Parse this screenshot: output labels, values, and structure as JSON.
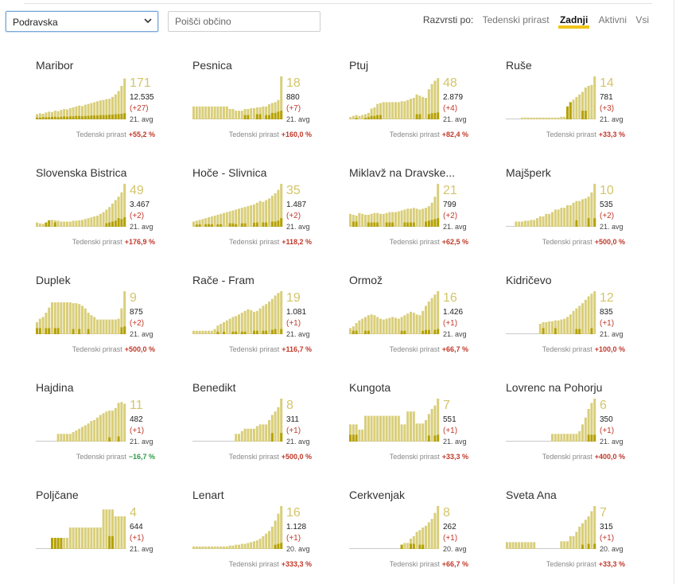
{
  "filters": {
    "region_value": "Podravska",
    "search_placeholder": "Poišči občino"
  },
  "sort": {
    "label": "Razvrsti po:",
    "options": [
      {
        "label": "Tedenski prirast",
        "active": false
      },
      {
        "label": "Zadnji",
        "active": true
      },
      {
        "label": "Aktivni",
        "active": false
      },
      {
        "label": "Vsi",
        "active": false
      }
    ]
  },
  "colors": {
    "bar_light": "#d9ce7a",
    "bar_dark": "#b4a100",
    "big_number": "#d4c56a",
    "growth_positive": "#c0392b",
    "growth_negative": "#2e9a4a"
  },
  "growth_label": "Tedenski prirast",
  "cards": [
    {
      "name": "Maribor",
      "last": "171",
      "total": "12.535",
      "delta": "(+27)",
      "date": "21. avg",
      "growth": "+55,2 %",
      "bars": [
        0.12,
        0.14,
        0.13,
        0.16,
        0.18,
        0.17,
        0.2,
        0.19,
        0.22,
        0.24,
        0.23,
        0.26,
        0.28,
        0.3,
        0.32,
        0.31,
        0.34,
        0.36,
        0.38,
        0.4,
        0.42,
        0.44,
        0.45,
        0.47,
        0.48,
        0.52,
        0.58,
        0.66,
        0.78,
        0.95
      ],
      "dark": [
        0.04,
        0.04,
        0.05,
        0.05,
        0.05,
        0.06,
        0.06,
        0.05,
        0.06,
        0.07,
        0.06,
        0.07,
        0.07,
        0.08,
        0.08,
        0.07,
        0.08,
        0.08,
        0.09,
        0.09,
        0.09,
        0.1,
        0.1,
        0.1,
        0.11,
        0.11,
        0.12,
        0.12,
        0.13,
        0.14
      ]
    },
    {
      "name": "Pesnica",
      "last": "18",
      "total": "880",
      "delta": "(+7)",
      "date": "21. avg",
      "growth": "+160,0 %",
      "bars": [
        0.3,
        0.3,
        0.3,
        0.3,
        0.3,
        0.3,
        0.3,
        0.3,
        0.3,
        0.3,
        0.3,
        0.3,
        0.24,
        0.24,
        0.2,
        0.2,
        0.2,
        0.24,
        0.24,
        0.26,
        0.26,
        0.28,
        0.28,
        0.3,
        0.3,
        0.35,
        0.38,
        0.4,
        0.45,
        1.0
      ],
      "dark": [
        0,
        0,
        0,
        0,
        0,
        0,
        0,
        0,
        0,
        0,
        0,
        0,
        0,
        0,
        0,
        0,
        0,
        0.1,
        0.1,
        0,
        0,
        0.12,
        0.12,
        0,
        0.1,
        0.1,
        0.15,
        0.15,
        0.18,
        0.2
      ]
    },
    {
      "name": "Ptuj",
      "last": "48",
      "total": "2.879",
      "delta": "(+4)",
      "date": "21. avg",
      "growth": "+82,4 %",
      "bars": [
        0.05,
        0.08,
        0.1,
        0.08,
        0.1,
        0.12,
        0.15,
        0.25,
        0.28,
        0.36,
        0.38,
        0.4,
        0.4,
        0.4,
        0.4,
        0.4,
        0.4,
        0.42,
        0.42,
        0.45,
        0.48,
        0.5,
        0.58,
        0.55,
        0.52,
        0.5,
        0.7,
        0.82,
        0.9,
        0.96
      ],
      "dark": [
        0,
        0,
        0.03,
        0,
        0,
        0.03,
        0.05,
        0.08,
        0.08,
        0.1,
        0.1,
        0,
        0,
        0,
        0,
        0,
        0,
        0,
        0,
        0,
        0,
        0,
        0.12,
        0.12,
        0,
        0,
        0.12,
        0.14,
        0.15,
        0.16
      ]
    },
    {
      "name": "Ruše",
      "last": "14",
      "total": "781",
      "delta": "(+3)",
      "date": "21. avg",
      "growth": "+33,3 %",
      "bars": [
        0,
        0,
        0,
        0,
        0,
        0.04,
        0.04,
        0.04,
        0.04,
        0.04,
        0.04,
        0.04,
        0.04,
        0.04,
        0.04,
        0.04,
        0.04,
        0.04,
        0.06,
        0.06,
        0.3,
        0.4,
        0.46,
        0.52,
        0.58,
        0.64,
        0.74,
        0.78,
        0.8,
        1.0
      ],
      "dark": [
        0,
        0,
        0,
        0,
        0,
        0,
        0,
        0,
        0,
        0,
        0,
        0,
        0,
        0,
        0,
        0,
        0,
        0,
        0,
        0,
        0.3,
        0.4,
        0,
        0,
        0,
        0.2,
        0.2,
        0,
        0,
        0
      ]
    },
    {
      "name": "Slovenska Bistrica",
      "last": "49",
      "total": "3.467",
      "delta": "(+2)",
      "date": "21. avg",
      "growth": "+176,9 %",
      "bars": [
        0.1,
        0.08,
        0.07,
        0.1,
        0.15,
        0.16,
        0.15,
        0.14,
        0.12,
        0.12,
        0.12,
        0.12,
        0.14,
        0.14,
        0.15,
        0.16,
        0.18,
        0.2,
        0.22,
        0.24,
        0.26,
        0.3,
        0.34,
        0.4,
        0.46,
        0.54,
        0.62,
        0.7,
        0.8,
        1.0
      ],
      "dark": [
        0,
        0,
        0,
        0.1,
        0.15,
        0,
        0.1,
        0,
        0,
        0,
        0,
        0,
        0,
        0,
        0,
        0,
        0,
        0,
        0,
        0,
        0,
        0,
        0,
        0.08,
        0.1,
        0.12,
        0.14,
        0.2,
        0.18,
        0.22
      ]
    },
    {
      "name": "Hoče - Slivnica",
      "last": "35",
      "total": "1.487",
      "delta": "(+2)",
      "date": "21. avg",
      "growth": "+118,2 %",
      "bars": [
        0.12,
        0.14,
        0.16,
        0.18,
        0.2,
        0.22,
        0.24,
        0.26,
        0.28,
        0.3,
        0.32,
        0.34,
        0.36,
        0.38,
        0.4,
        0.42,
        0.44,
        0.46,
        0.48,
        0.5,
        0.52,
        0.56,
        0.6,
        0.58,
        0.62,
        0.66,
        0.72,
        0.78,
        0.86,
        1.0
      ],
      "dark": [
        0,
        0.05,
        0.06,
        0,
        0.06,
        0.06,
        0.06,
        0,
        0.06,
        0.06,
        0,
        0,
        0.08,
        0.08,
        0.06,
        0,
        0.08,
        0.08,
        0,
        0,
        0.09,
        0.1,
        0,
        0.1,
        0.1,
        0,
        0.12,
        0.12,
        0.14,
        0.2
      ]
    },
    {
      "name": "Miklavž na Dravske...",
      "last": "21",
      "total": "799",
      "delta": "(+2)",
      "date": "21. avg",
      "growth": "+62,5 %",
      "bars": [
        0.3,
        0.28,
        0.26,
        0.32,
        0.3,
        0.28,
        0.28,
        0.3,
        0.32,
        0.32,
        0.3,
        0.3,
        0.32,
        0.34,
        0.34,
        0.34,
        0.36,
        0.38,
        0.4,
        0.42,
        0.42,
        0.44,
        0.42,
        0.4,
        0.42,
        0.44,
        0.48,
        0.56,
        0.7,
        1.0
      ],
      "dark": [
        0,
        0.12,
        0.12,
        0,
        0,
        0,
        0.1,
        0.1,
        0.1,
        0.1,
        0,
        0,
        0.1,
        0.1,
        0.1,
        0,
        0,
        0,
        0.1,
        0.1,
        0.1,
        0.1,
        0,
        0,
        0,
        0.12,
        0.14,
        0.16,
        0.18,
        0.2
      ]
    },
    {
      "name": "Majšperk",
      "last": "10",
      "total": "535",
      "delta": "(+2)",
      "date": "21. avg",
      "growth": "+500,0 %",
      "bars": [
        0,
        0,
        0,
        0.12,
        0.12,
        0.12,
        0.14,
        0.14,
        0.16,
        0.16,
        0.2,
        0.24,
        0.24,
        0.3,
        0.3,
        0.34,
        0.4,
        0.4,
        0.44,
        0.44,
        0.5,
        0.5,
        0.56,
        0.6,
        0.6,
        0.64,
        0.66,
        0.7,
        0.8,
        1.0
      ],
      "dark": [
        0,
        0,
        0,
        0,
        0,
        0,
        0,
        0,
        0,
        0,
        0,
        0,
        0,
        0,
        0,
        0,
        0,
        0,
        0,
        0,
        0,
        0,
        0,
        0.15,
        0,
        0,
        0,
        0.2,
        0,
        0.2
      ]
    },
    {
      "name": "Duplek",
      "last": "9",
      "total": "875",
      "delta": "(+2)",
      "date": "21. avg",
      "growth": "+500,0 %",
      "bars": [
        0.28,
        0.36,
        0.4,
        0.5,
        0.62,
        0.74,
        0.74,
        0.74,
        0.74,
        0.74,
        0.74,
        0.74,
        0.72,
        0.72,
        0.7,
        0.66,
        0.6,
        0.5,
        0.44,
        0.4,
        0.34,
        0.34,
        0.34,
        0.34,
        0.34,
        0.34,
        0.34,
        0.36,
        0.6,
        1.0
      ],
      "dark": [
        0.14,
        0.14,
        0,
        0.14,
        0.14,
        0,
        0.14,
        0.14,
        0,
        0,
        0,
        0,
        0.12,
        0,
        0.12,
        0,
        0,
        0.12,
        0,
        0,
        0,
        0,
        0,
        0,
        0,
        0,
        0,
        0,
        0.16,
        0.18
      ]
    },
    {
      "name": "Rače - Fram",
      "last": "19",
      "total": "1.081",
      "delta": "(+1)",
      "date": "21. avg",
      "growth": "+116,7 %",
      "bars": [
        0.08,
        0.08,
        0.08,
        0.08,
        0.08,
        0.08,
        0.08,
        0.12,
        0.2,
        0.24,
        0.28,
        0.32,
        0.36,
        0.4,
        0.42,
        0.46,
        0.5,
        0.54,
        0.58,
        0.56,
        0.52,
        0.54,
        0.6,
        0.66,
        0.7,
        0.76,
        0.82,
        0.9,
        0.96,
        1.0
      ],
      "dark": [
        0,
        0,
        0,
        0,
        0,
        0,
        0,
        0,
        0.06,
        0,
        0.06,
        0,
        0,
        0.06,
        0.06,
        0,
        0.06,
        0.06,
        0,
        0,
        0.08,
        0.08,
        0,
        0.08,
        0.08,
        0,
        0.1,
        0.12,
        0,
        0.12
      ]
    },
    {
      "name": "Ormož",
      "last": "16",
      "total": "1.426",
      "delta": "(+1)",
      "date": "21. avg",
      "growth": "+66,7 %",
      "bars": [
        0.14,
        0.18,
        0.26,
        0.32,
        0.36,
        0.4,
        0.44,
        0.46,
        0.44,
        0.4,
        0.36,
        0.34,
        0.36,
        0.38,
        0.4,
        0.38,
        0.36,
        0.4,
        0.44,
        0.48,
        0.52,
        0.5,
        0.46,
        0.44,
        0.54,
        0.66,
        0.76,
        0.84,
        0.92,
        1.0
      ],
      "dark": [
        0,
        0.08,
        0.08,
        0,
        0,
        0.08,
        0.08,
        0,
        0,
        0,
        0,
        0,
        0,
        0,
        0,
        0,
        0,
        0.08,
        0.08,
        0,
        0,
        0,
        0,
        0,
        0.08,
        0.1,
        0.1,
        0,
        0.1,
        0.12
      ]
    },
    {
      "name": "Kidričevo",
      "last": "12",
      "total": "835",
      "delta": "(+1)",
      "date": "21. avg",
      "growth": "+100,0 %",
      "bars": [
        0,
        0,
        0,
        0,
        0,
        0,
        0,
        0,
        0,
        0,
        0,
        0.24,
        0.28,
        0.28,
        0.3,
        0.3,
        0.32,
        0.32,
        0.34,
        0.36,
        0.4,
        0.46,
        0.54,
        0.6,
        0.66,
        0.72,
        0.8,
        0.88,
        0.94,
        1.0
      ],
      "dark": [
        0,
        0,
        0,
        0,
        0,
        0,
        0,
        0,
        0,
        0,
        0,
        0,
        0.14,
        0,
        0,
        0,
        0.14,
        0,
        0,
        0,
        0,
        0,
        0,
        0.12,
        0.12,
        0,
        0,
        0,
        0.14,
        0
      ]
    },
    {
      "name": "Hajdina",
      "last": "11",
      "total": "482",
      "delta": "(+1)",
      "date": "21. avg",
      "growth": "−16,7 %",
      "growth_negative": true,
      "bars": [
        0,
        0,
        0,
        0,
        0,
        0,
        0,
        0.18,
        0.18,
        0.18,
        0.18,
        0.18,
        0.22,
        0.26,
        0.3,
        0.34,
        0.38,
        0.42,
        0.48,
        0.5,
        0.56,
        0.62,
        0.66,
        0.7,
        0.72,
        0.72,
        0.78,
        0.9,
        0.92,
        0.88
      ],
      "dark": [
        0,
        0,
        0,
        0,
        0,
        0,
        0,
        0,
        0,
        0,
        0,
        0,
        0,
        0,
        0,
        0,
        0,
        0,
        0,
        0,
        0,
        0,
        0,
        0,
        0.1,
        0,
        0,
        0.12,
        0,
        0
      ]
    },
    {
      "name": "Benedikt",
      "last": "8",
      "total": "311",
      "delta": "(+1)",
      "date": "21. avg",
      "growth": "+500,0 %",
      "bars": [
        0,
        0,
        0,
        0,
        0,
        0,
        0,
        0,
        0,
        0,
        0,
        0,
        0,
        0,
        0.18,
        0.18,
        0.24,
        0.3,
        0.3,
        0.3,
        0.3,
        0.36,
        0.4,
        0.4,
        0.4,
        0.5,
        0.62,
        0.7,
        0.8,
        1.0
      ],
      "dark": [
        0,
        0,
        0,
        0,
        0,
        0,
        0,
        0,
        0,
        0,
        0,
        0,
        0,
        0,
        0,
        0,
        0,
        0,
        0,
        0,
        0,
        0,
        0,
        0,
        0,
        0,
        0.2,
        0,
        0,
        0.2
      ]
    },
    {
      "name": "Kungota",
      "last": "7",
      "total": "551",
      "delta": "(+1)",
      "date": "21. avg",
      "growth": "+33,3 %",
      "bars": [
        0.4,
        0.4,
        0.4,
        0.28,
        0.28,
        0.6,
        0.6,
        0.6,
        0.6,
        0.6,
        0.6,
        0.6,
        0.6,
        0.6,
        0.6,
        0.6,
        0.6,
        0.4,
        0.4,
        0.7,
        0.7,
        0.7,
        0.42,
        0.42,
        0.42,
        0.5,
        0.64,
        0.76,
        0.84,
        1.0
      ],
      "dark": [
        0.16,
        0.16,
        0.16,
        0,
        0,
        0,
        0,
        0,
        0,
        0,
        0,
        0,
        0,
        0,
        0,
        0,
        0,
        0,
        0,
        0,
        0,
        0,
        0,
        0,
        0,
        0,
        0.14,
        0,
        0.14,
        0.16
      ]
    },
    {
      "name": "Lovrenc na Pohorju",
      "last": "6",
      "total": "350",
      "delta": "(+1)",
      "date": "21. avg",
      "growth": "+400,0 %",
      "bars": [
        0,
        0,
        0,
        0,
        0,
        0,
        0,
        0,
        0,
        0,
        0,
        0,
        0,
        0,
        0,
        0.18,
        0.18,
        0.18,
        0.18,
        0.18,
        0.18,
        0.18,
        0.18,
        0.18,
        0.24,
        0.4,
        0.56,
        0.76,
        0.9,
        1.0
      ],
      "dark": [
        0,
        0,
        0,
        0,
        0,
        0,
        0,
        0,
        0,
        0,
        0,
        0,
        0,
        0,
        0,
        0,
        0,
        0,
        0,
        0,
        0,
        0,
        0,
        0,
        0,
        0,
        0,
        0.16,
        0.16,
        0.16
      ]
    },
    {
      "name": "Poljčane",
      "last": "4",
      "total": "644",
      "delta": "(+1)",
      "date": "21. avg",
      "growth": "",
      "bars": [
        0,
        0,
        0,
        0,
        0,
        0.26,
        0.26,
        0.26,
        0.26,
        0.26,
        0.26,
        0.5,
        0.5,
        0.5,
        0.5,
        0.5,
        0.5,
        0.5,
        0.5,
        0.5,
        0.5,
        0.5,
        0.92,
        0.92,
        0.92,
        0.92,
        0.76,
        0.76,
        0.76,
        0.76
      ],
      "dark": [
        0,
        0,
        0,
        0,
        0,
        0.26,
        0.26,
        0.26,
        0.26,
        0,
        0,
        0,
        0,
        0,
        0,
        0,
        0,
        0,
        0,
        0,
        0,
        0,
        0,
        0,
        0.3,
        0.3,
        0,
        0,
        0,
        0
      ]
    },
    {
      "name": "Lenart",
      "last": "16",
      "total": "1.128",
      "delta": "(+1)",
      "date": "20. avg",
      "growth": "+333,3 %",
      "bars": [
        0.06,
        0.06,
        0.06,
        0.06,
        0.06,
        0.06,
        0.06,
        0.06,
        0.06,
        0.06,
        0.06,
        0.06,
        0.08,
        0.08,
        0.1,
        0.1,
        0.12,
        0.12,
        0.14,
        0.16,
        0.18,
        0.2,
        0.24,
        0.3,
        0.36,
        0.42,
        0.52,
        0.66,
        0.82,
        1.0
      ],
      "dark": [
        0,
        0,
        0,
        0,
        0,
        0,
        0,
        0,
        0,
        0,
        0,
        0,
        0,
        0,
        0,
        0,
        0,
        0,
        0,
        0,
        0,
        0,
        0,
        0,
        0,
        0,
        0,
        0.1,
        0.12,
        0.14
      ]
    },
    {
      "name": "Cerkvenjak",
      "last": "8",
      "total": "262",
      "delta": "(+1)",
      "date": "20. avg",
      "growth": "+66,7 %",
      "bars": [
        0,
        0,
        0,
        0,
        0,
        0,
        0,
        0,
        0,
        0,
        0,
        0,
        0,
        0,
        0,
        0,
        0,
        0.1,
        0.14,
        0.14,
        0.24,
        0.3,
        0.4,
        0.44,
        0.5,
        0.54,
        0.62,
        0.7,
        0.84,
        1.0
      ],
      "dark": [
        0,
        0,
        0,
        0,
        0,
        0,
        0,
        0,
        0,
        0,
        0,
        0,
        0,
        0,
        0,
        0,
        0,
        0.1,
        0,
        0,
        0.12,
        0.12,
        0,
        0.1,
        0.1,
        0,
        0,
        0,
        0,
        0
      ]
    },
    {
      "name": "Sveta Ana",
      "last": "7",
      "total": "315",
      "delta": "(+1)",
      "date": "20. avg",
      "growth": "+33,3 %",
      "bars": [
        0.16,
        0.16,
        0.16,
        0.16,
        0.16,
        0.16,
        0.16,
        0.16,
        0.16,
        0.16,
        0,
        0,
        0,
        0,
        0,
        0,
        0,
        0,
        0.18,
        0.18,
        0.18,
        0.3,
        0.3,
        0.4,
        0.52,
        0.6,
        0.68,
        0.76,
        0.88,
        1.0
      ],
      "dark": [
        0,
        0,
        0,
        0,
        0,
        0,
        0,
        0,
        0,
        0,
        0,
        0,
        0,
        0,
        0,
        0,
        0,
        0,
        0,
        0,
        0,
        0,
        0,
        0,
        0,
        0.1,
        0,
        0.12,
        0,
        0.12
      ]
    }
  ]
}
